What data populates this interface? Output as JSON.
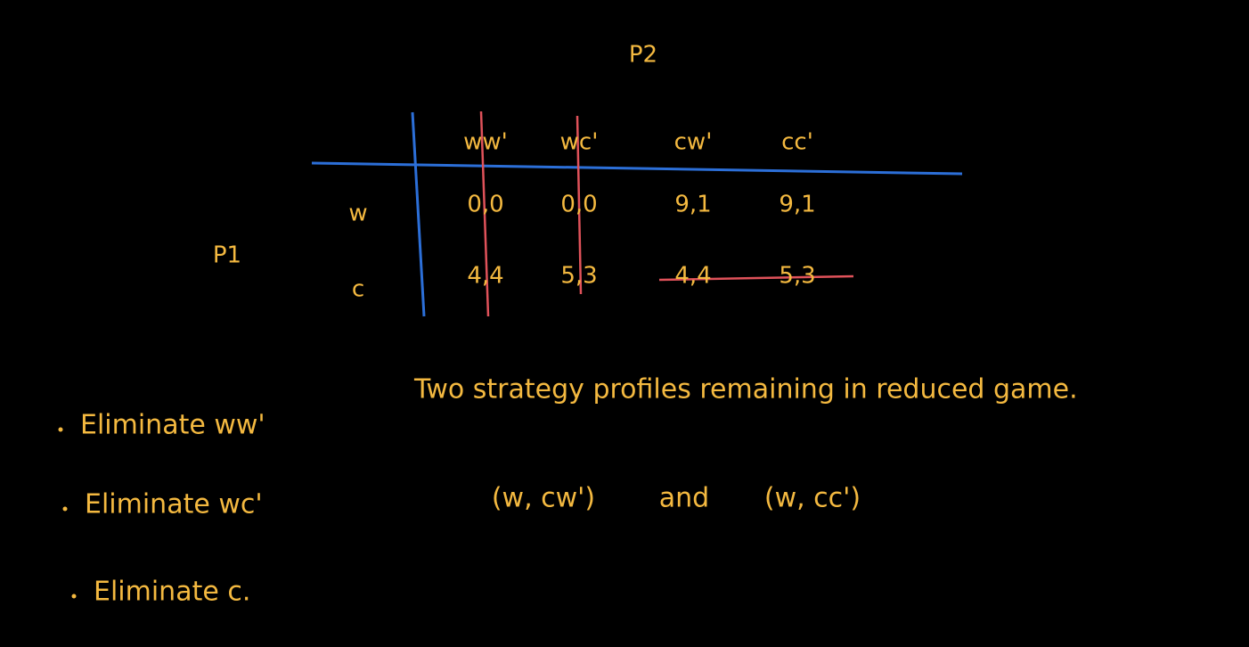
{
  "player2": "P2",
  "player1": "P1",
  "columns": [
    "ww'",
    "wc'",
    "cw'",
    "cc'"
  ],
  "rows": [
    {
      "label": "w",
      "cells": [
        "0,0",
        "0,0",
        "9,1",
        "9,1"
      ]
    },
    {
      "label": "c",
      "cells": [
        "4,4",
        "5,3",
        "4,4",
        "5,3"
      ]
    }
  ],
  "notes": [
    "Eliminate ww'",
    "Eliminate wc'",
    "Eliminate c."
  ],
  "summary": "Two strategy profiles remaining in reduced game.",
  "profiles": [
    "(w, cw')",
    "and",
    "(w, cc')"
  ]
}
